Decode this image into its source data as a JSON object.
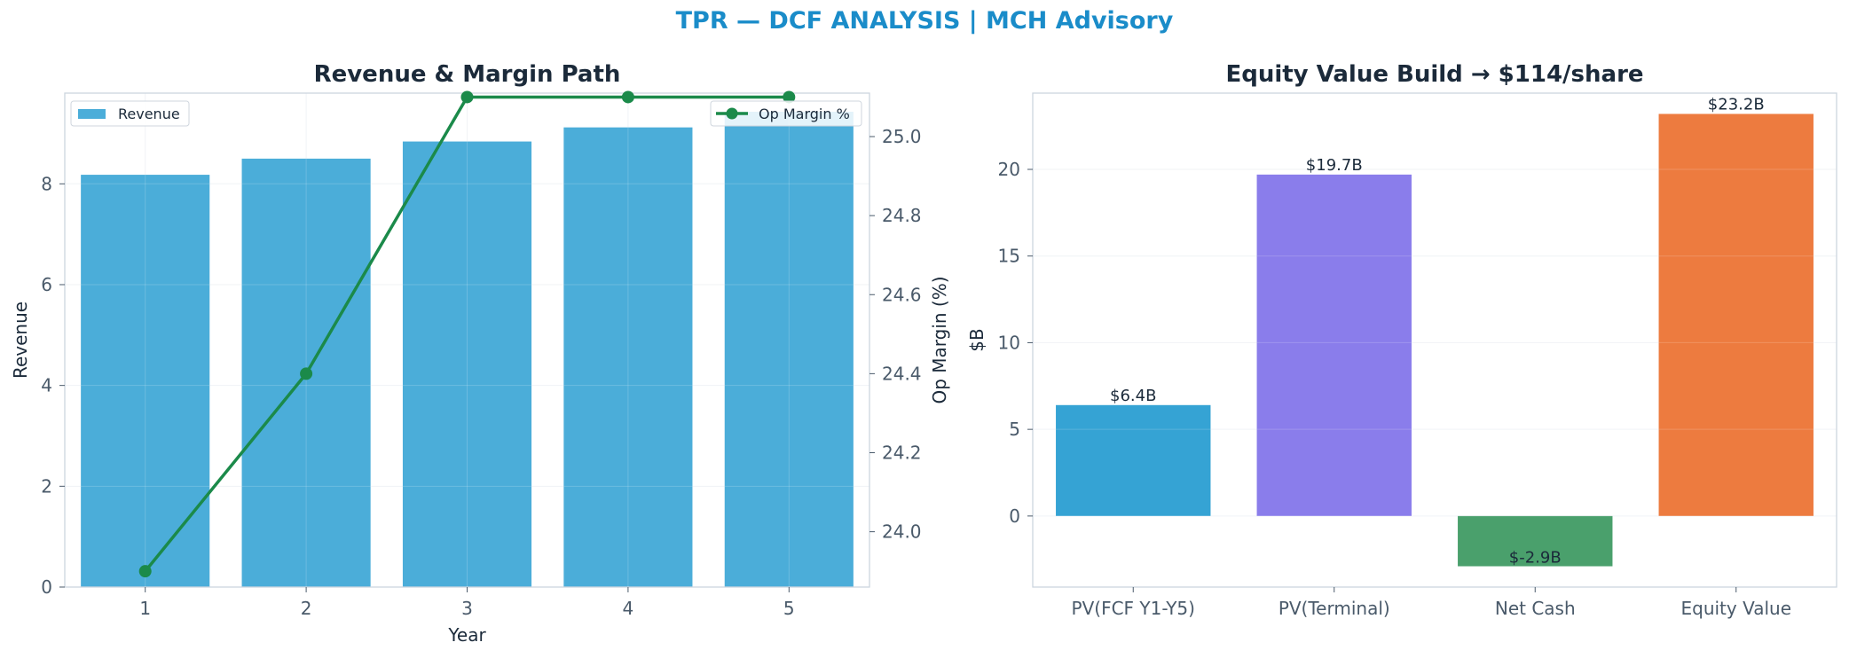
{
  "suptitle": "TPR — DCF ANALYSIS | MCH Advisory",
  "colors": {
    "suptitle": "#1a8cc9",
    "revenue_bar": "#4badd9",
    "op_margin_line": "#1b8a4a",
    "bar_pv_fcf": "#35a3d4",
    "bar_pv_terminal": "#8a7deb",
    "bar_net_cash": "#4aa06c",
    "bar_equity_value": "#ed7b3f"
  },
  "chart_data": [
    {
      "type": "bar",
      "title": "Revenue & Margin Path",
      "xlabel": "Year",
      "ylabel": "Revenue",
      "y2label": "Op Margin (%)",
      "categories": [
        "1",
        "2",
        "3",
        "4",
        "5"
      ],
      "ylim": [
        0,
        9.8
      ],
      "y2lim": [
        23.86,
        25.11
      ],
      "yticks": [
        0,
        2,
        4,
        6,
        8
      ],
      "y2ticks": [
        24.0,
        24.2,
        24.4,
        24.6,
        24.8,
        25.0
      ],
      "grid": true,
      "series": [
        {
          "name": "Revenue",
          "type": "bar",
          "axis": "left",
          "values": [
            8.18,
            8.5,
            8.84,
            9.12,
            9.43
          ]
        },
        {
          "name": "Op Margin %",
          "type": "line",
          "axis": "right",
          "values": [
            23.9,
            24.4,
            25.1,
            25.1,
            25.1
          ]
        }
      ],
      "legend": [
        {
          "label": "Revenue",
          "placement": "top-left"
        },
        {
          "label": "Op Margin %",
          "placement": "top-right"
        }
      ]
    },
    {
      "type": "bar",
      "title": "Equity Value Build → $114/share",
      "xlabel": "",
      "ylabel": "$B",
      "categories": [
        "PV(FCF Y1-Y5)",
        "PV(Terminal)",
        "Net Cash",
        "Equity Value"
      ],
      "values": [
        6.4,
        19.7,
        -2.9,
        23.2
      ],
      "data_labels": [
        "$6.4B",
        "$19.7B",
        "$-2.9B",
        "$23.2B"
      ],
      "ylim": [
        -4.1,
        24.4
      ],
      "yticks": [
        0,
        5,
        10,
        15,
        20
      ],
      "grid": true
    }
  ]
}
